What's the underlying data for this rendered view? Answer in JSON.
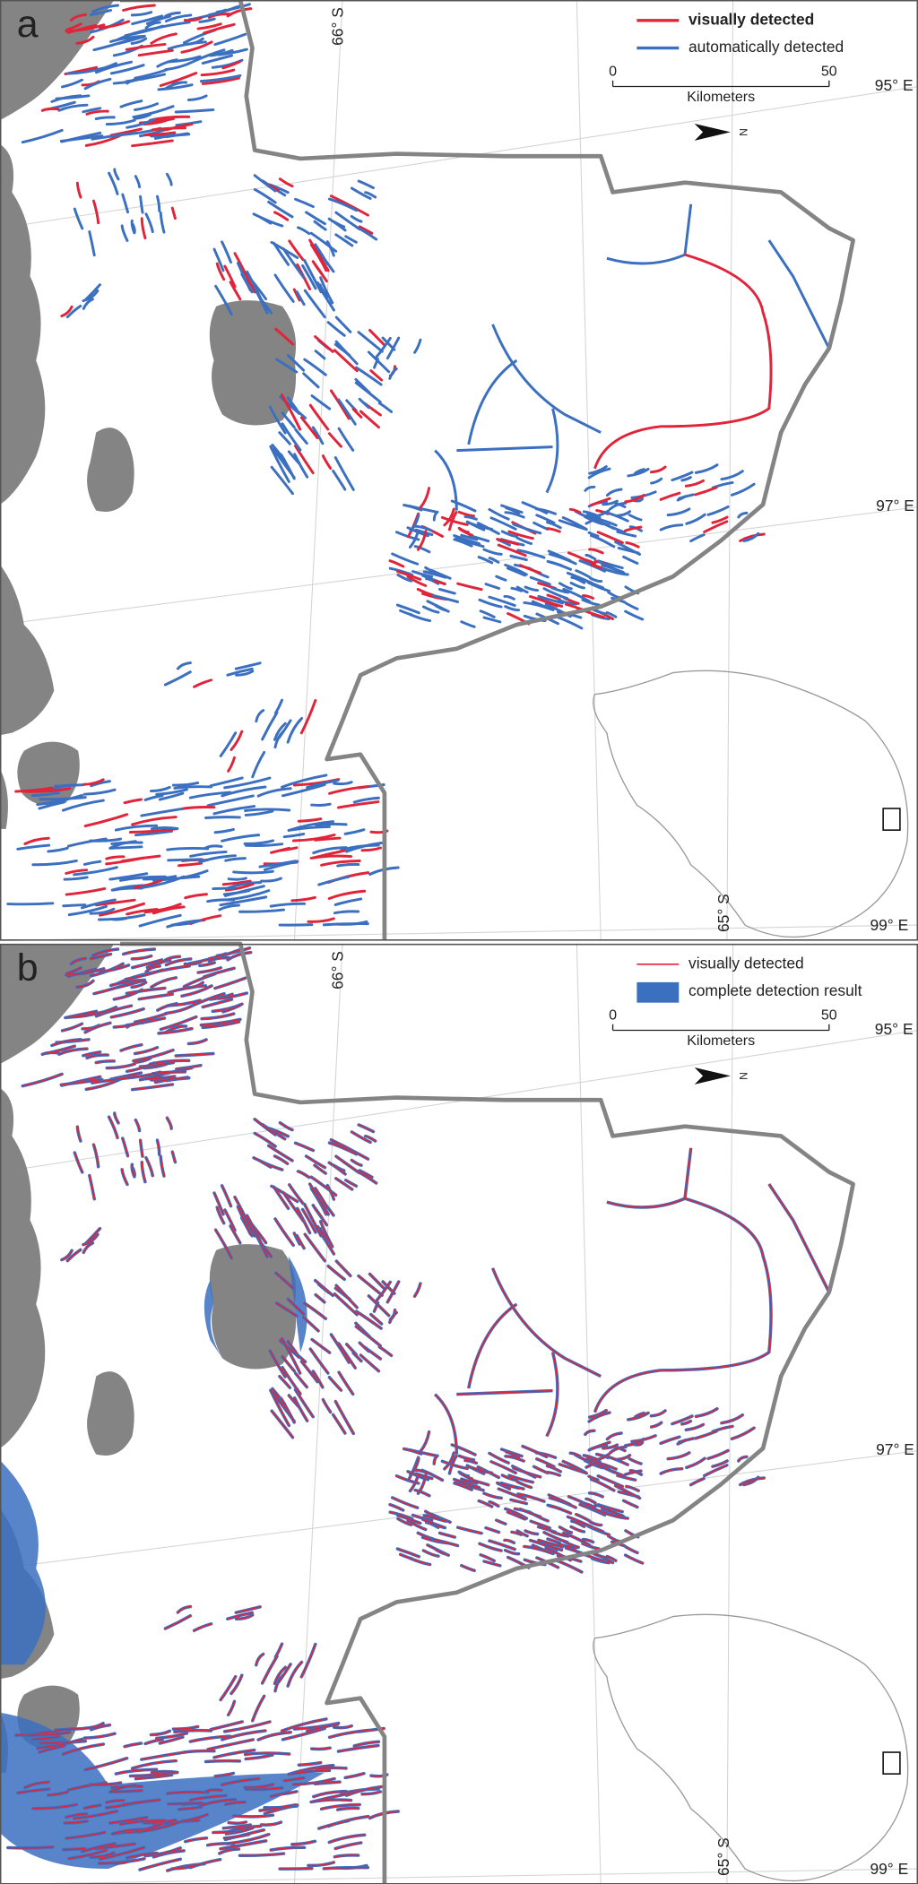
{
  "panels": [
    {
      "label": "a",
      "legend": [
        {
          "label": "visually detected"
        },
        {
          "label": "automatically detected"
        }
      ],
      "scale_bar": {
        "start": 0,
        "end": 50,
        "unit": "Kilometers"
      },
      "north_label": "N",
      "graticule_labels": {
        "lat_top": "66° S",
        "lon_top": "95° E",
        "lon_mid": "97° E",
        "lat_bottom": "65° S",
        "lon_bottom": "99° E"
      }
    },
    {
      "label": "b",
      "legend": [
        {
          "label": "visually detected"
        },
        {
          "label": "complete detection result"
        }
      ],
      "scale_bar": {
        "start": 0,
        "end": 50,
        "unit": "Kilometers"
      },
      "north_label": "N",
      "graticule_labels": {
        "lat_top": "66° S",
        "lon_top": "95° E",
        "lon_mid": "97° E",
        "lat_bottom": "65° S",
        "lon_bottom": "99° E"
      }
    }
  ]
}
